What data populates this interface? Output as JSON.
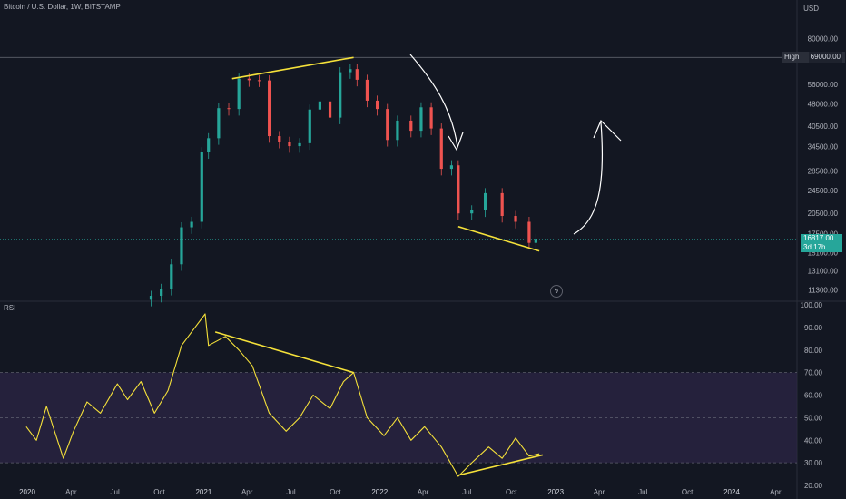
{
  "header": {
    "symbol_title": "Bitcoin / U.S. Dollar, 1W, BITSTAMP",
    "currency": "USD"
  },
  "price_axis": {
    "ticks": [
      "80000.00",
      "69000.00",
      "56000.00",
      "48000.00",
      "40500.00",
      "34500.00",
      "28500.00",
      "24500.00",
      "20500.00",
      "17500.00",
      "15100.00",
      "13100.00",
      "11300.00"
    ],
    "high_label": "High",
    "high_value": "69000.00",
    "current_price": "16817.00",
    "countdown": "3d 17h"
  },
  "rsi_panel": {
    "label": "RSI",
    "ticks": [
      "100.00",
      "90.00",
      "80.00",
      "70.00",
      "60.00",
      "50.00",
      "40.00",
      "30.00",
      "20.00"
    ]
  },
  "time_axis": {
    "labels": [
      "2020",
      "Apr",
      "Jul",
      "Oct",
      "2021",
      "Apr",
      "Jul",
      "Oct",
      "2022",
      "Apr",
      "Jul",
      "Oct",
      "2023",
      "Apr",
      "Jul",
      "Oct",
      "2024",
      "Apr"
    ]
  },
  "colors": {
    "background": "#131722",
    "up": "#26a69a",
    "down": "#ef5350",
    "trendline": "#f5e13a",
    "annotation": "#ffffff",
    "rsi_line": "#f5e13a",
    "rsi_band": "#2a2444"
  },
  "chart_data": [
    {
      "type": "candlestick",
      "title": "Bitcoin / U.S. Dollar, 1W, BITSTAMP",
      "ylabel": "USD",
      "y_scale": "log",
      "ylim": [
        10500,
        95000
      ],
      "x": [
        "2020-09-14",
        "2020-10-05",
        "2020-10-26",
        "2020-11-16",
        "2020-12-07",
        "2020-12-28",
        "2021-01-11",
        "2021-02-01",
        "2021-02-22",
        "2021-03-15",
        "2021-04-05",
        "2021-04-26",
        "2021-05-17",
        "2021-06-07",
        "2021-06-28",
        "2021-07-19",
        "2021-08-09",
        "2021-08-30",
        "2021-09-20",
        "2021-10-11",
        "2021-11-01",
        "2021-11-15",
        "2021-12-06",
        "2021-12-27",
        "2022-01-17",
        "2022-02-07",
        "2022-03-07",
        "2022-03-28",
        "2022-04-18",
        "2022-05-09",
        "2022-05-30",
        "2022-06-13",
        "2022-07-11",
        "2022-08-08",
        "2022-09-12",
        "2022-10-10",
        "2022-11-07",
        "2022-11-21"
      ],
      "close": [
        10800,
        11400,
        13800,
        18400,
        19200,
        33000,
        36800,
        46500,
        46200,
        58500,
        57800,
        57700,
        37400,
        35800,
        34600,
        35400,
        46000,
        49000,
        43200,
        61500,
        63000,
        58000,
        49300,
        46200,
        36300,
        42200,
        39000,
        46800,
        39700,
        29000,
        29800,
        20500,
        21000,
        24000,
        20100,
        19200,
        16300,
        16817
      ],
      "trendlines": [
        {
          "from": [
            "2021-03-01",
            58500
          ],
          "to": [
            "2021-11-08",
            69000
          ]
        },
        {
          "from": [
            "2022-06-13",
            18500
          ],
          "to": [
            "2022-11-28",
            15300
          ]
        }
      ]
    },
    {
      "type": "line",
      "title": "RSI",
      "ylim": [
        18,
        100
      ],
      "bands": {
        "upper": 70,
        "middle": 50,
        "lower": 30
      },
      "x": [
        "2019-12-30",
        "2020-01-20",
        "2020-02-10",
        "2020-03-16",
        "2020-04-06",
        "2020-05-04",
        "2020-06-01",
        "2020-07-06",
        "2020-07-27",
        "2020-08-24",
        "2020-09-21",
        "2020-10-19",
        "2020-11-16",
        "2020-12-14",
        "2021-01-04",
        "2021-01-11",
        "2021-02-15",
        "2021-03-15",
        "2021-04-12",
        "2021-05-17",
        "2021-06-21",
        "2021-07-19",
        "2021-08-16",
        "2021-09-20",
        "2021-10-18",
        "2021-11-08",
        "2021-12-06",
        "2022-01-10",
        "2022-02-07",
        "2022-03-07",
        "2022-04-04",
        "2022-05-09",
        "2022-06-13",
        "2022-07-11",
        "2022-08-15",
        "2022-09-12",
        "2022-10-10",
        "2022-11-07",
        "2022-11-28"
      ],
      "values": [
        46,
        40,
        55,
        32,
        44,
        57,
        52,
        65,
        58,
        66,
        52,
        62,
        82,
        90,
        96,
        82,
        86,
        80,
        73,
        52,
        44,
        50,
        60,
        54,
        66,
        70,
        50,
        42,
        50,
        40,
        46,
        37,
        24,
        30,
        37,
        32,
        41,
        33,
        34
      ],
      "trendlines": [
        {
          "from": [
            "2021-01-25",
            88
          ],
          "to": [
            "2021-11-08",
            70
          ]
        },
        {
          "from": [
            "2022-06-13",
            24.5
          ],
          "to": [
            "2022-12-05",
            33.5
          ]
        }
      ]
    }
  ]
}
